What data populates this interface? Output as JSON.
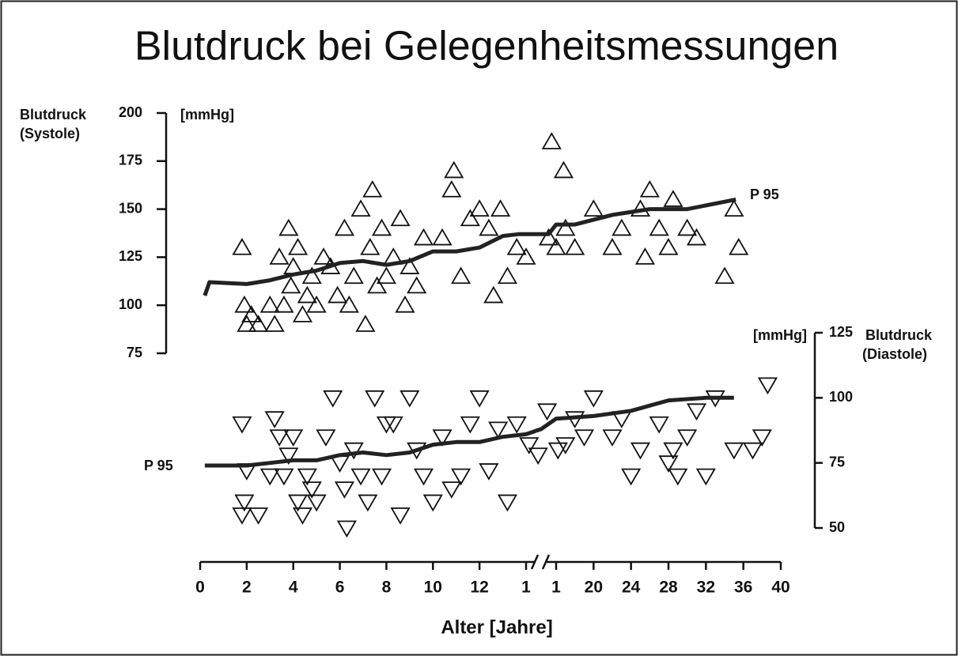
{
  "chart_data": {
    "type": "scatter",
    "title": "Blutdruck bei Gelegenheitsmessungen",
    "x_label": "Alter [Jahre]",
    "y_label": [
      "Blutdruck",
      "(Systole)"
    ],
    "y_unit": "[mmHg]",
    "y2_label": [
      "Blutdruck",
      "(Diastole)"
    ],
    "y2_unit": "[mmHg]",
    "annotations": [
      "P 95",
      "P 95"
    ],
    "xlim": [
      0,
      40
    ],
    "xbreak": [
      14,
      16
    ],
    "xticks": [
      0,
      2,
      4,
      6,
      8,
      10,
      12,
      {
        "value": 14,
        "label": "1"
      },
      {
        "value": 16,
        "label": "1"
      },
      20,
      24,
      28,
      32,
      36,
      40
    ],
    "ylim": [
      75,
      200
    ],
    "yticks": [
      75,
      100,
      125,
      150,
      175,
      200
    ],
    "y2lim": [
      50,
      125
    ],
    "y2ticks": [
      50,
      75,
      100,
      125
    ],
    "series": [
      {
        "marker": "triangle-up",
        "color": "#111",
        "axis": "y",
        "x": [
          1.8,
          1.9,
          2.0,
          2.2,
          2.5,
          3.0,
          3.2,
          3.4,
          3.6,
          3.8,
          3.9,
          4.0,
          4.2,
          4.4,
          4.6,
          4.8,
          5.0,
          5.3,
          5.6,
          5.9,
          6.2,
          6.4,
          6.6,
          6.9,
          7.1,
          7.3,
          7.4,
          7.6,
          7.8,
          8.0,
          8.3,
          8.6,
          8.8,
          9.0,
          9.3,
          9.6,
          10.4,
          10.8,
          10.9,
          11.2,
          11.6,
          12.0,
          12.4,
          12.6,
          12.9,
          13.2,
          13.6,
          14.0,
          15.5,
          15.7,
          16.0,
          16.8,
          17.0,
          18.0,
          20.0,
          22.0,
          23.0,
          25.0,
          25.5,
          26.0,
          27.0,
          28.0,
          28.5,
          30.0,
          31.0,
          34.0,
          35.0,
          35.5
        ],
        "values": [
          130,
          100,
          90,
          95,
          90,
          100,
          90,
          125,
          100,
          140,
          110,
          120,
          130,
          95,
          105,
          115,
          100,
          125,
          120,
          105,
          140,
          100,
          115,
          150,
          90,
          130,
          160,
          110,
          140,
          115,
          125,
          145,
          100,
          120,
          110,
          135,
          135,
          160,
          170,
          115,
          145,
          150,
          140,
          105,
          150,
          115,
          130,
          125,
          135,
          185,
          130,
          170,
          140,
          130,
          150,
          130,
          140,
          150,
          125,
          160,
          140,
          130,
          155,
          140,
          135,
          115,
          150,
          130
        ]
      },
      {
        "marker": "triangle-down",
        "color": "#111",
        "axis": "y2",
        "x": [
          1.8,
          1.9,
          1.8,
          2.0,
          2.5,
          3.0,
          3.2,
          3.4,
          3.6,
          3.8,
          4.0,
          4.2,
          4.4,
          4.6,
          4.8,
          5.0,
          5.4,
          5.7,
          6.0,
          6.2,
          6.3,
          6.6,
          6.9,
          7.2,
          7.5,
          7.8,
          8.0,
          8.3,
          8.6,
          9.0,
          9.3,
          9.6,
          10.0,
          10.4,
          10.8,
          11.2,
          11.6,
          12.0,
          12.4,
          12.8,
          13.2,
          13.6,
          14.2,
          14.8,
          15.4,
          16.2,
          17.0,
          18.0,
          19.0,
          20.0,
          22.0,
          23.0,
          24.0,
          25.0,
          27.0,
          28.0,
          28.5,
          29.0,
          30.0,
          31.0,
          32.0,
          33.0,
          35.0,
          37.0,
          38.0,
          38.6
        ],
        "values": [
          90,
          60,
          55,
          72,
          55,
          70,
          92,
          85,
          70,
          78,
          85,
          60,
          55,
          70,
          65,
          60,
          85,
          100,
          75,
          65,
          50,
          80,
          70,
          60,
          100,
          70,
          90,
          90,
          55,
          100,
          80,
          70,
          60,
          85,
          65,
          70,
          90,
          100,
          72,
          88,
          60,
          90,
          82,
          78,
          95,
          80,
          82,
          92,
          85,
          100,
          85,
          92,
          70,
          80,
          90,
          75,
          80,
          70,
          85,
          95,
          70,
          100,
          80,
          80,
          85,
          105
        ]
      },
      {
        "marker": "line",
        "color": "#222",
        "axis": "y",
        "x": [
          0.2,
          0.4,
          2,
          3,
          4,
          5,
          6,
          7,
          8,
          9,
          10,
          11,
          12,
          13,
          13.7,
          15.5,
          16,
          18,
          22,
          26,
          30,
          35.2
        ],
        "values": [
          105,
          112,
          111,
          113,
          116,
          118,
          122,
          123,
          121,
          123,
          128,
          128,
          130,
          136,
          137,
          137,
          142,
          142,
          147,
          150,
          150,
          155
        ]
      },
      {
        "marker": "line",
        "color": "#222",
        "axis": "y2",
        "x": [
          0.2,
          2,
          3,
          4,
          5,
          6,
          7,
          8,
          9,
          10,
          11,
          12,
          13,
          14,
          15,
          16,
          20,
          24,
          28,
          32,
          35
        ],
        "values": [
          74,
          74,
          75,
          76,
          76,
          78,
          79,
          78,
          79,
          82,
          83,
          83,
          85,
          86,
          88,
          92,
          93,
          95,
          99,
          100,
          100
        ]
      }
    ]
  }
}
